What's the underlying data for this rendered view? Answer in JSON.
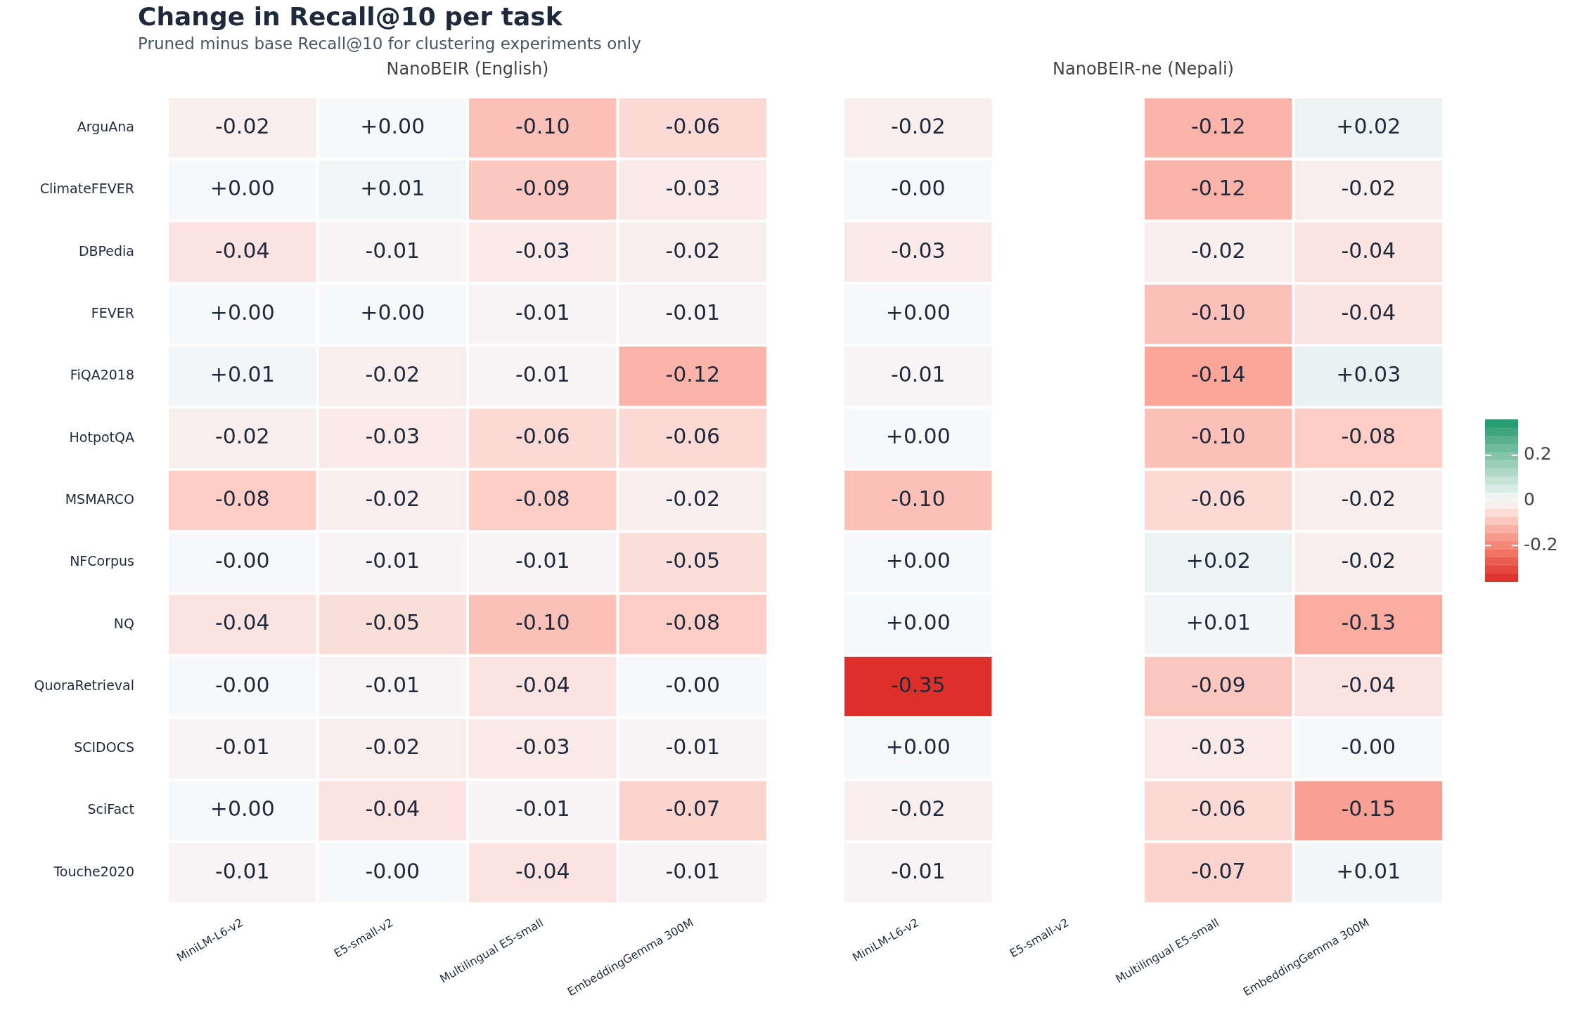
{
  "chart_data": [
    {
      "type": "heatmap",
      "title": "Change in Recall@10 per task",
      "subtitle": "Pruned minus base Recall@10 for clustering experiments only",
      "annotations": [
        "NanoBEIR (English)"
      ],
      "categories": [
        "MiniLM-L6-v2",
        "E5-small-v2",
        "Multilingual E5-small",
        "EmbeddingGemma 300M"
      ],
      "y_categories": [
        "ArguAna",
        "ClimateFEVER",
        "DBPedia",
        "FEVER",
        "FiQA2018",
        "HotpotQA",
        "MSMARCO",
        "NFCorpus",
        "NQ",
        "QuoraRetrieval",
        "SCIDOCS",
        "SciFact",
        "Touche2020"
      ],
      "cells": [
        [
          -0.02,
          0,
          -0.1,
          -0.06
        ],
        [
          0,
          0.01,
          -0.09,
          -0.03
        ],
        [
          -0.04,
          -0.01,
          -0.03,
          -0.02
        ],
        [
          0,
          0,
          -0.01,
          -0.01
        ],
        [
          0.01,
          -0.02,
          -0.01,
          -0.12
        ],
        [
          -0.02,
          -0.03,
          -0.06,
          -0.06
        ],
        [
          -0.08,
          -0.02,
          -0.08,
          -0.02
        ],
        [
          0,
          -0.01,
          -0.01,
          -0.05
        ],
        [
          -0.04,
          -0.05,
          -0.1,
          -0.08
        ],
        [
          0,
          -0.01,
          -0.04,
          0
        ],
        [
          -0.01,
          -0.02,
          -0.03,
          -0.01
        ],
        [
          0,
          -0.04,
          -0.01,
          -0.07
        ],
        [
          -0.01,
          0,
          -0.04,
          -0.01
        ]
      ],
      "cell_labels": [
        [
          "-0.02",
          "+0.00",
          "-0.10",
          "-0.06"
        ],
        [
          "+0.00",
          "+0.01",
          "-0.09",
          "-0.03"
        ],
        [
          "-0.04",
          "-0.01",
          "-0.03",
          "-0.02"
        ],
        [
          "+0.00",
          "+0.00",
          "-0.01",
          "-0.01"
        ],
        [
          "+0.01",
          "-0.02",
          "-0.01",
          "-0.12"
        ],
        [
          "-0.02",
          "-0.03",
          "-0.06",
          "-0.06"
        ],
        [
          "-0.08",
          "-0.02",
          "-0.08",
          "-0.02"
        ],
        [
          "-0.00",
          "-0.01",
          "-0.01",
          "-0.05"
        ],
        [
          "-0.04",
          "-0.05",
          "-0.10",
          "-0.08"
        ],
        [
          "-0.00",
          "-0.01",
          "-0.04",
          "-0.00"
        ],
        [
          "-0.01",
          "-0.02",
          "-0.03",
          "-0.01"
        ],
        [
          "+0.00",
          "-0.04",
          "-0.01",
          "-0.07"
        ],
        [
          "-0.01",
          "-0.00",
          "-0.04",
          "-0.01"
        ]
      ]
    },
    {
      "type": "heatmap",
      "annotations": [
        "NanoBEIR-ne (Nepali)"
      ],
      "categories": [
        "MiniLM-L6-v2",
        "E5-small-v2",
        "Multilingual E5-small",
        "EmbeddingGemma 300M"
      ],
      "y_categories": [
        "ArguAna",
        "ClimateFEVER",
        "DBPedia",
        "FEVER",
        "FiQA2018",
        "HotpotQA",
        "MSMARCO",
        "NFCorpus",
        "NQ",
        "QuoraRetrieval",
        "SCIDOCS",
        "SciFact",
        "Touche2020"
      ],
      "cells": [
        [
          -0.02,
          null,
          -0.12,
          0.02
        ],
        [
          0,
          null,
          -0.12,
          -0.02
        ],
        [
          -0.03,
          null,
          -0.02,
          -0.04
        ],
        [
          0,
          null,
          -0.1,
          -0.04
        ],
        [
          -0.01,
          null,
          -0.14,
          0.03
        ],
        [
          0,
          null,
          -0.1,
          -0.08
        ],
        [
          -0.1,
          null,
          -0.06,
          -0.02
        ],
        [
          0,
          null,
          0.02,
          -0.02
        ],
        [
          0,
          null,
          0.01,
          -0.13
        ],
        [
          -0.35,
          null,
          -0.09,
          -0.04
        ],
        [
          0,
          null,
          -0.03,
          0
        ],
        [
          -0.02,
          null,
          -0.06,
          -0.15
        ],
        [
          -0.01,
          null,
          -0.07,
          0.01
        ]
      ],
      "cell_labels": [
        [
          "-0.02",
          null,
          "-0.12",
          "+0.02"
        ],
        [
          "-0.00",
          null,
          "-0.12",
          "-0.02"
        ],
        [
          "-0.03",
          null,
          "-0.02",
          "-0.04"
        ],
        [
          "+0.00",
          null,
          "-0.10",
          "-0.04"
        ],
        [
          "-0.01",
          null,
          "-0.14",
          "+0.03"
        ],
        [
          "+0.00",
          null,
          "-0.10",
          "-0.08"
        ],
        [
          "-0.10",
          null,
          "-0.06",
          "-0.02"
        ],
        [
          "+0.00",
          null,
          "+0.02",
          "-0.02"
        ],
        [
          "+0.00",
          null,
          "+0.01",
          "-0.13"
        ],
        [
          "-0.35",
          null,
          "-0.09",
          "-0.04"
        ],
        [
          "+0.00",
          null,
          "-0.03",
          "-0.00"
        ],
        [
          "-0.02",
          null,
          "-0.06",
          "-0.15"
        ],
        [
          "-0.01",
          null,
          "-0.07",
          "+0.01"
        ]
      ],
      "clim": [
        -0.36,
        0.36
      ],
      "cticks": [
        -0.2,
        0,
        0.2
      ],
      "tick_labels": "x"
    }
  ]
}
